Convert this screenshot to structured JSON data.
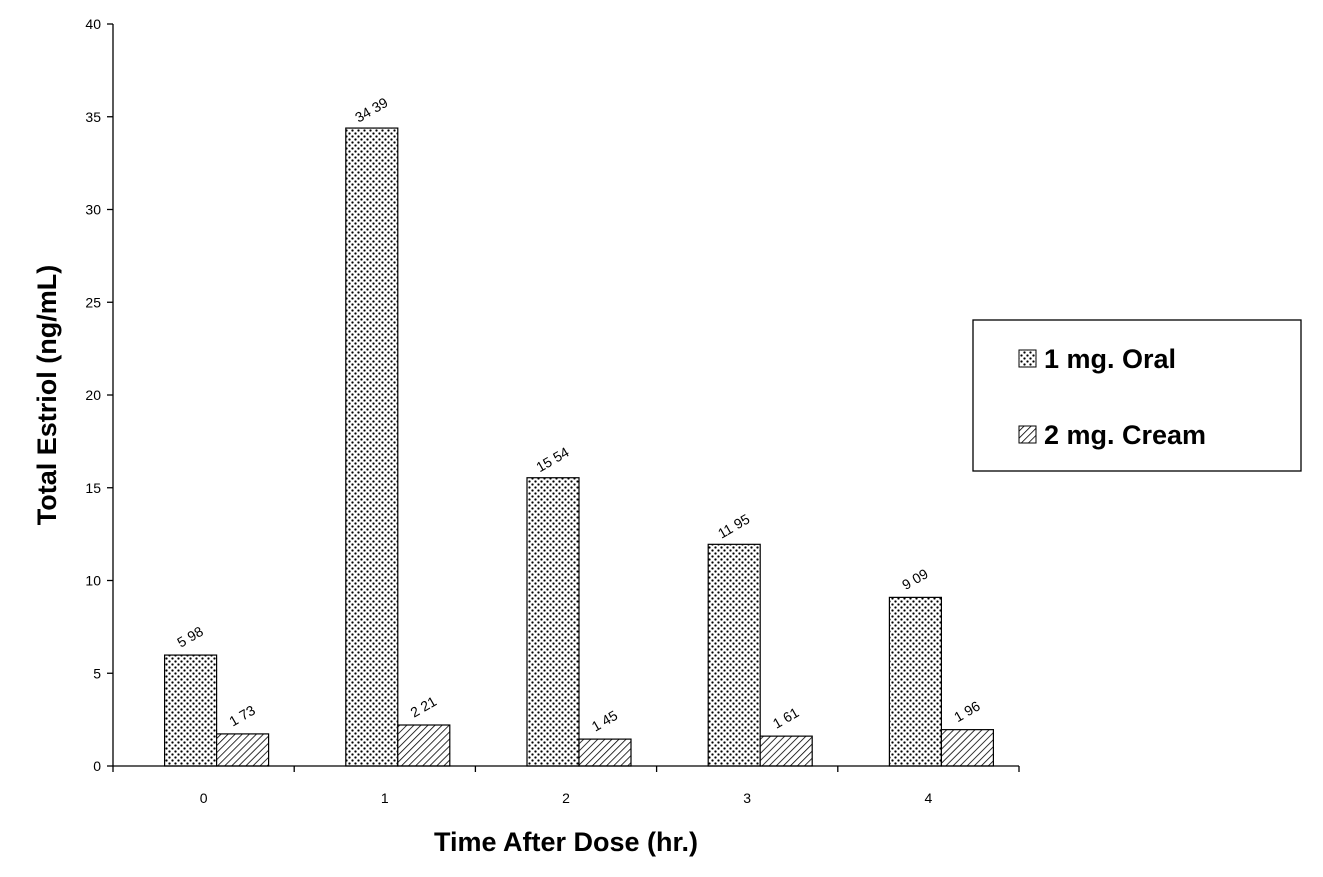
{
  "chart_data": {
    "type": "bar",
    "title": "",
    "xlabel": "Time After Dose (hr.)",
    "ylabel": "Total Estriol (ng/mL)",
    "categories": [
      "0",
      "1",
      "2",
      "3",
      "4"
    ],
    "series": [
      {
        "name": "1 mg. Oral",
        "values": [
          5.98,
          34.39,
          15.54,
          11.95,
          9.09
        ],
        "labels": [
          "5 98",
          "34 39",
          "15 54",
          "11 95",
          "9 09"
        ],
        "pattern": "dots"
      },
      {
        "name": "2 mg. Cream",
        "values": [
          1.73,
          2.21,
          1.45,
          1.61,
          1.96
        ],
        "labels": [
          "1 73",
          "2 21",
          "1 45",
          "1 61",
          "1 96"
        ],
        "pattern": "diagonal-hatch"
      }
    ],
    "ylim": [
      0,
      40
    ],
    "yticks": [
      0,
      5,
      10,
      15,
      20,
      25,
      30,
      35,
      40
    ],
    "grid": false,
    "legend_position": "right"
  }
}
